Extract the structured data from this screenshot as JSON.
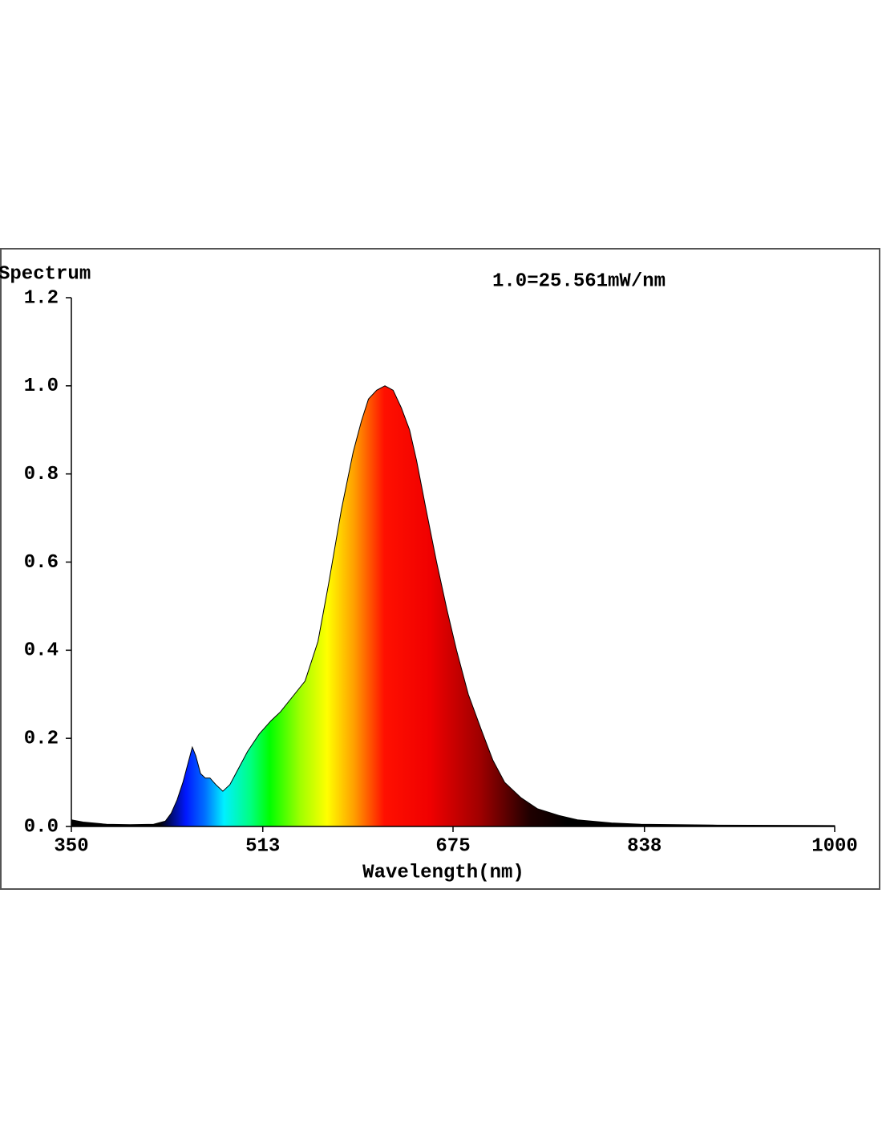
{
  "chart_data": {
    "type": "area",
    "y_label": "Spectrum",
    "x_label": "Wavelength(nm)",
    "annotation": "1.0=25.561mW/nm",
    "x": [
      350,
      360,
      380,
      400,
      420,
      430,
      435,
      440,
      445,
      450,
      453,
      456,
      460,
      464,
      468,
      473,
      479,
      485,
      490,
      500,
      510,
      520,
      528,
      540,
      549,
      560,
      569,
      580,
      590,
      597,
      603,
      610,
      617,
      624,
      631,
      638,
      644,
      652,
      661,
      670,
      678,
      688,
      699,
      709,
      719,
      733,
      747,
      765,
      781,
      810,
      835,
      900,
      1000
    ],
    "values": [
      0.015,
      0.01,
      0.005,
      0.004,
      0.005,
      0.012,
      0.03,
      0.06,
      0.1,
      0.15,
      0.18,
      0.16,
      0.12,
      0.11,
      0.11,
      0.095,
      0.08,
      0.095,
      0.12,
      0.17,
      0.21,
      0.24,
      0.26,
      0.3,
      0.33,
      0.42,
      0.55,
      0.72,
      0.85,
      0.92,
      0.97,
      0.99,
      1.0,
      0.99,
      0.95,
      0.9,
      0.83,
      0.72,
      0.6,
      0.49,
      0.4,
      0.3,
      0.22,
      0.15,
      0.1,
      0.065,
      0.04,
      0.025,
      0.015,
      0.008,
      0.005,
      0.003,
      0.002
    ],
    "xlim": [
      350,
      1000
    ],
    "xticks": [
      350,
      513,
      675,
      838,
      1000
    ],
    "ylim": [
      0,
      1.2
    ],
    "yticks": [
      {
        "value": 0,
        "label": "0.0"
      },
      0.2,
      0.4,
      0.6,
      0.8,
      {
        "value": 1,
        "label": "1.0"
      },
      1.2
    ]
  }
}
